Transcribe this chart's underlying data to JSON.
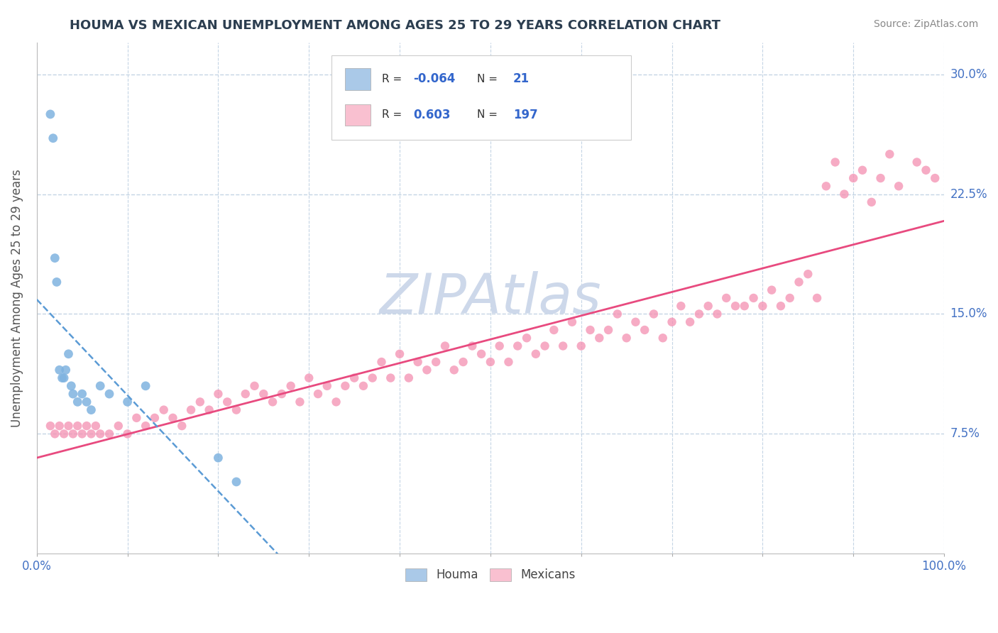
{
  "title": "HOUMA VS MEXICAN UNEMPLOYMENT AMONG AGES 25 TO 29 YEARS CORRELATION CHART",
  "source": "Source: ZipAtlas.com",
  "ylabel": "Unemployment Among Ages 25 to 29 years",
  "xlim": [
    0,
    100
  ],
  "ylim": [
    0,
    32
  ],
  "xticks": [
    0,
    10,
    20,
    30,
    40,
    50,
    60,
    70,
    80,
    90,
    100
  ],
  "xticklabels_show": [
    "0.0%",
    "",
    "",
    "",
    "",
    "",
    "",
    "",
    "",
    "",
    "100.0%"
  ],
  "yticks": [
    7.5,
    15.0,
    22.5,
    30.0
  ],
  "yticklabels": [
    "7.5%",
    "15.0%",
    "22.5%",
    "30.0%"
  ],
  "houma_color": "#aac9e8",
  "mexican_color": "#f9c0d0",
  "houma_dot_color": "#7fb3e0",
  "mexican_dot_color": "#f48fb1",
  "trend_houma_color": "#5b9bd5",
  "trend_mexican_color": "#e84a7f",
  "watermark_color": "#cdd8ea",
  "background_color": "#ffffff",
  "grid_color": "#c5d5e5",
  "tick_label_color": "#4472c4",
  "houma_x": [
    1.5,
    1.8,
    2.0,
    2.2,
    2.5,
    2.8,
    3.0,
    3.2,
    3.5,
    3.8,
    4.0,
    4.5,
    5.0,
    5.5,
    6.0,
    7.0,
    8.0,
    10.0,
    12.0,
    20.0,
    22.0
  ],
  "houma_y": [
    27.5,
    26.0,
    18.5,
    17.0,
    11.5,
    11.0,
    11.0,
    11.5,
    12.5,
    10.5,
    10.0,
    9.5,
    10.0,
    9.5,
    9.0,
    10.5,
    10.0,
    9.5,
    10.5,
    6.0,
    4.5
  ],
  "mexican_x": [
    1.5,
    2.0,
    2.5,
    3.0,
    3.5,
    4.0,
    4.5,
    5.0,
    5.5,
    6.0,
    6.5,
    7.0,
    8.0,
    9.0,
    10.0,
    11.0,
    12.0,
    13.0,
    14.0,
    15.0,
    16.0,
    17.0,
    18.0,
    19.0,
    20.0,
    21.0,
    22.0,
    23.0,
    24.0,
    25.0,
    26.0,
    27.0,
    28.0,
    29.0,
    30.0,
    31.0,
    32.0,
    33.0,
    34.0,
    35.0,
    36.0,
    37.0,
    38.0,
    39.0,
    40.0,
    41.0,
    42.0,
    43.0,
    44.0,
    45.0,
    46.0,
    47.0,
    48.0,
    49.0,
    50.0,
    51.0,
    52.0,
    53.0,
    54.0,
    55.0,
    56.0,
    57.0,
    58.0,
    59.0,
    60.0,
    61.0,
    62.0,
    63.0,
    64.0,
    65.0,
    66.0,
    67.0,
    68.0,
    69.0,
    70.0,
    71.0,
    72.0,
    73.0,
    74.0,
    75.0,
    76.0,
    77.0,
    78.0,
    79.0,
    80.0,
    81.0,
    82.0,
    83.0,
    84.0,
    85.0,
    86.0,
    87.0,
    88.0,
    89.0,
    90.0,
    91.0,
    92.0,
    93.0,
    94.0,
    95.0,
    97.0,
    98.0,
    99.0
  ],
  "mexican_y": [
    8.0,
    7.5,
    8.0,
    7.5,
    8.0,
    7.5,
    8.0,
    7.5,
    8.0,
    7.5,
    8.0,
    7.5,
    7.5,
    8.0,
    7.5,
    8.5,
    8.0,
    8.5,
    9.0,
    8.5,
    8.0,
    9.0,
    9.5,
    9.0,
    10.0,
    9.5,
    9.0,
    10.0,
    10.5,
    10.0,
    9.5,
    10.0,
    10.5,
    9.5,
    11.0,
    10.0,
    10.5,
    9.5,
    10.5,
    11.0,
    10.5,
    11.0,
    12.0,
    11.0,
    12.5,
    11.0,
    12.0,
    11.5,
    12.0,
    13.0,
    11.5,
    12.0,
    13.0,
    12.5,
    12.0,
    13.0,
    12.0,
    13.0,
    13.5,
    12.5,
    13.0,
    14.0,
    13.0,
    14.5,
    13.0,
    14.0,
    13.5,
    14.0,
    15.0,
    13.5,
    14.5,
    14.0,
    15.0,
    13.5,
    14.5,
    15.5,
    14.5,
    15.0,
    15.5,
    15.0,
    16.0,
    15.5,
    15.5,
    16.0,
    15.5,
    16.5,
    15.5,
    16.0,
    17.0,
    17.5,
    16.0,
    23.0,
    24.5,
    22.5,
    23.5,
    24.0,
    22.0,
    23.5,
    25.0,
    23.0,
    24.5,
    24.0,
    23.5
  ]
}
